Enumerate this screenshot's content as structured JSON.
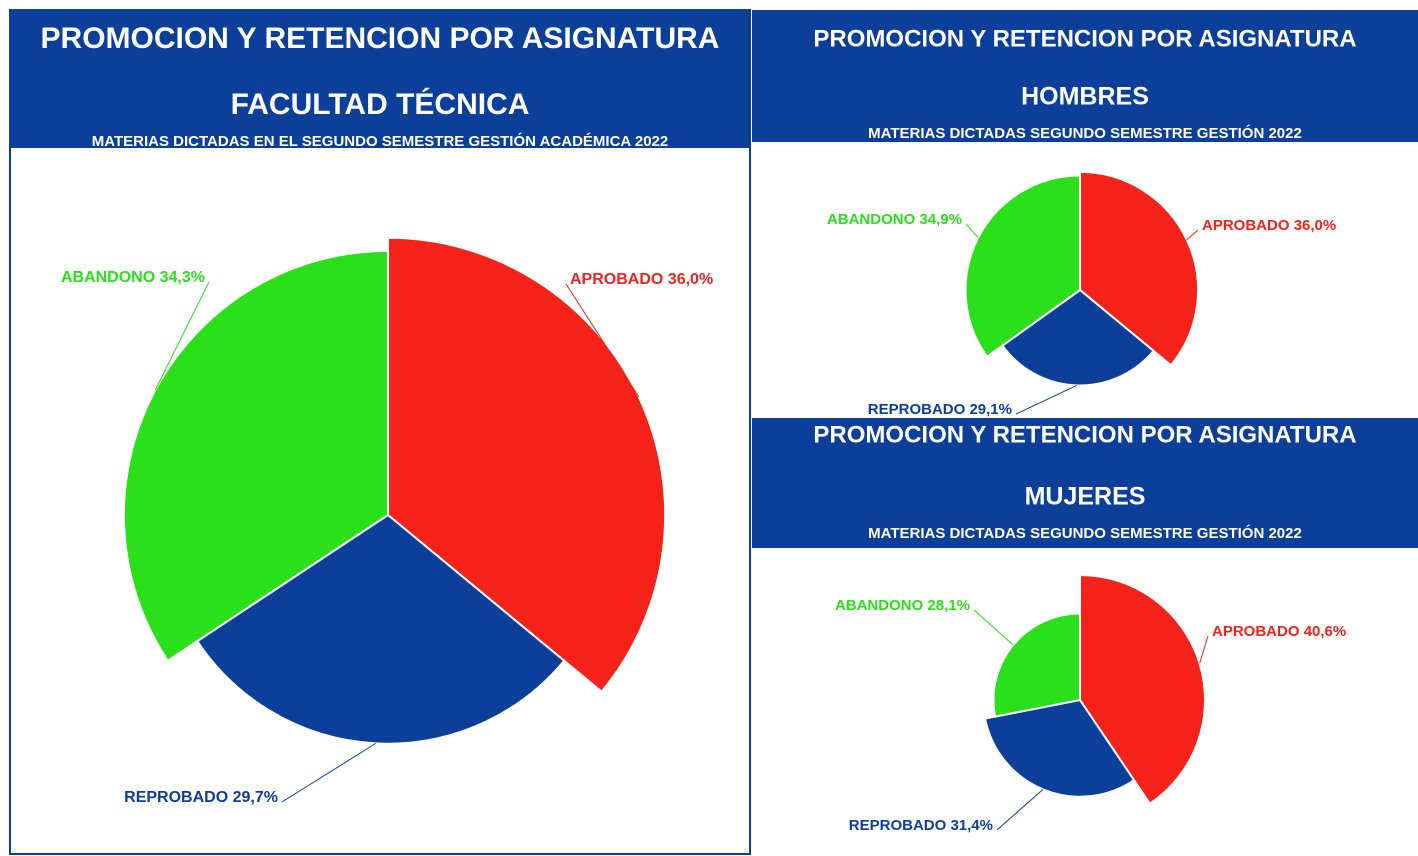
{
  "chart_data": [
    {
      "type": "pie",
      "title": "PROMOCION Y RETENCION POR ASIGNATURA",
      "subtitle": "FACULTAD TÉCNICA",
      "note": "MATERIAS DICTADAS EN EL SEGUNDO SEMESTRE GESTIÓN ACADÉMICA 2022",
      "categories": [
        "APROBADO",
        "REPROBADO",
        "ABANDONO"
      ],
      "values": [
        36.0,
        29.7,
        34.3
      ],
      "value_labels": [
        "36,0%",
        "29,7%",
        "34,3%"
      ],
      "colors": [
        "#f5221a",
        "#0b3f9a",
        "#29e01b"
      ]
    },
    {
      "type": "pie",
      "title": "PROMOCION Y RETENCION POR ASIGNATURA",
      "subtitle": "HOMBRES",
      "note": "MATERIAS DICTADAS SEGUNDO SEMESTRE GESTIÓN 2022",
      "categories": [
        "APROBADO",
        "REPROBADO",
        "ABANDONO"
      ],
      "values": [
        36.0,
        29.1,
        34.9
      ],
      "value_labels": [
        "36,0%",
        "29,1%",
        "34,9%"
      ],
      "colors": [
        "#f5221a",
        "#0b3f9a",
        "#29e01b"
      ]
    },
    {
      "type": "pie",
      "title": "PROMOCION Y RETENCION POR ASIGNATURA",
      "subtitle": "MUJERES",
      "note": "MATERIAS DICTADAS SEGUNDO SEMESTRE GESTIÓN 2022",
      "categories": [
        "APROBADO",
        "REPROBADO",
        "ABANDONO"
      ],
      "values": [
        40.6,
        31.4,
        28.1
      ],
      "value_labels": [
        "40,6%",
        "31,4%",
        "28,1%"
      ],
      "colors": [
        "#f5221a",
        "#0b3f9a",
        "#29e01b"
      ]
    }
  ]
}
